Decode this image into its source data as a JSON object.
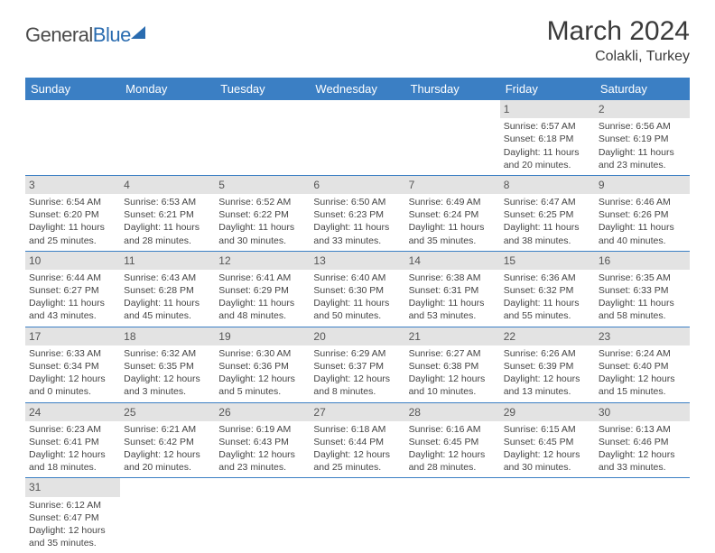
{
  "logo": {
    "text1": "General",
    "text2": "Blue"
  },
  "title": "March 2024",
  "location": "Colakli, Turkey",
  "colors": {
    "header_bg": "#3b7fc4",
    "header_fg": "#ffffff",
    "daynum_bg": "#e3e3e3",
    "text": "#444444",
    "accent": "#2a6cb0"
  },
  "weekdays": [
    "Sunday",
    "Monday",
    "Tuesday",
    "Wednesday",
    "Thursday",
    "Friday",
    "Saturday"
  ],
  "weeks": [
    [
      null,
      null,
      null,
      null,
      null,
      {
        "n": "1",
        "sr": "Sunrise: 6:57 AM",
        "ss": "Sunset: 6:18 PM",
        "d1": "Daylight: 11 hours",
        "d2": "and 20 minutes."
      },
      {
        "n": "2",
        "sr": "Sunrise: 6:56 AM",
        "ss": "Sunset: 6:19 PM",
        "d1": "Daylight: 11 hours",
        "d2": "and 23 minutes."
      }
    ],
    [
      {
        "n": "3",
        "sr": "Sunrise: 6:54 AM",
        "ss": "Sunset: 6:20 PM",
        "d1": "Daylight: 11 hours",
        "d2": "and 25 minutes."
      },
      {
        "n": "4",
        "sr": "Sunrise: 6:53 AM",
        "ss": "Sunset: 6:21 PM",
        "d1": "Daylight: 11 hours",
        "d2": "and 28 minutes."
      },
      {
        "n": "5",
        "sr": "Sunrise: 6:52 AM",
        "ss": "Sunset: 6:22 PM",
        "d1": "Daylight: 11 hours",
        "d2": "and 30 minutes."
      },
      {
        "n": "6",
        "sr": "Sunrise: 6:50 AM",
        "ss": "Sunset: 6:23 PM",
        "d1": "Daylight: 11 hours",
        "d2": "and 33 minutes."
      },
      {
        "n": "7",
        "sr": "Sunrise: 6:49 AM",
        "ss": "Sunset: 6:24 PM",
        "d1": "Daylight: 11 hours",
        "d2": "and 35 minutes."
      },
      {
        "n": "8",
        "sr": "Sunrise: 6:47 AM",
        "ss": "Sunset: 6:25 PM",
        "d1": "Daylight: 11 hours",
        "d2": "and 38 minutes."
      },
      {
        "n": "9",
        "sr": "Sunrise: 6:46 AM",
        "ss": "Sunset: 6:26 PM",
        "d1": "Daylight: 11 hours",
        "d2": "and 40 minutes."
      }
    ],
    [
      {
        "n": "10",
        "sr": "Sunrise: 6:44 AM",
        "ss": "Sunset: 6:27 PM",
        "d1": "Daylight: 11 hours",
        "d2": "and 43 minutes."
      },
      {
        "n": "11",
        "sr": "Sunrise: 6:43 AM",
        "ss": "Sunset: 6:28 PM",
        "d1": "Daylight: 11 hours",
        "d2": "and 45 minutes."
      },
      {
        "n": "12",
        "sr": "Sunrise: 6:41 AM",
        "ss": "Sunset: 6:29 PM",
        "d1": "Daylight: 11 hours",
        "d2": "and 48 minutes."
      },
      {
        "n": "13",
        "sr": "Sunrise: 6:40 AM",
        "ss": "Sunset: 6:30 PM",
        "d1": "Daylight: 11 hours",
        "d2": "and 50 minutes."
      },
      {
        "n": "14",
        "sr": "Sunrise: 6:38 AM",
        "ss": "Sunset: 6:31 PM",
        "d1": "Daylight: 11 hours",
        "d2": "and 53 minutes."
      },
      {
        "n": "15",
        "sr": "Sunrise: 6:36 AM",
        "ss": "Sunset: 6:32 PM",
        "d1": "Daylight: 11 hours",
        "d2": "and 55 minutes."
      },
      {
        "n": "16",
        "sr": "Sunrise: 6:35 AM",
        "ss": "Sunset: 6:33 PM",
        "d1": "Daylight: 11 hours",
        "d2": "and 58 minutes."
      }
    ],
    [
      {
        "n": "17",
        "sr": "Sunrise: 6:33 AM",
        "ss": "Sunset: 6:34 PM",
        "d1": "Daylight: 12 hours",
        "d2": "and 0 minutes."
      },
      {
        "n": "18",
        "sr": "Sunrise: 6:32 AM",
        "ss": "Sunset: 6:35 PM",
        "d1": "Daylight: 12 hours",
        "d2": "and 3 minutes."
      },
      {
        "n": "19",
        "sr": "Sunrise: 6:30 AM",
        "ss": "Sunset: 6:36 PM",
        "d1": "Daylight: 12 hours",
        "d2": "and 5 minutes."
      },
      {
        "n": "20",
        "sr": "Sunrise: 6:29 AM",
        "ss": "Sunset: 6:37 PM",
        "d1": "Daylight: 12 hours",
        "d2": "and 8 minutes."
      },
      {
        "n": "21",
        "sr": "Sunrise: 6:27 AM",
        "ss": "Sunset: 6:38 PM",
        "d1": "Daylight: 12 hours",
        "d2": "and 10 minutes."
      },
      {
        "n": "22",
        "sr": "Sunrise: 6:26 AM",
        "ss": "Sunset: 6:39 PM",
        "d1": "Daylight: 12 hours",
        "d2": "and 13 minutes."
      },
      {
        "n": "23",
        "sr": "Sunrise: 6:24 AM",
        "ss": "Sunset: 6:40 PM",
        "d1": "Daylight: 12 hours",
        "d2": "and 15 minutes."
      }
    ],
    [
      {
        "n": "24",
        "sr": "Sunrise: 6:23 AM",
        "ss": "Sunset: 6:41 PM",
        "d1": "Daylight: 12 hours",
        "d2": "and 18 minutes."
      },
      {
        "n": "25",
        "sr": "Sunrise: 6:21 AM",
        "ss": "Sunset: 6:42 PM",
        "d1": "Daylight: 12 hours",
        "d2": "and 20 minutes."
      },
      {
        "n": "26",
        "sr": "Sunrise: 6:19 AM",
        "ss": "Sunset: 6:43 PM",
        "d1": "Daylight: 12 hours",
        "d2": "and 23 minutes."
      },
      {
        "n": "27",
        "sr": "Sunrise: 6:18 AM",
        "ss": "Sunset: 6:44 PM",
        "d1": "Daylight: 12 hours",
        "d2": "and 25 minutes."
      },
      {
        "n": "28",
        "sr": "Sunrise: 6:16 AM",
        "ss": "Sunset: 6:45 PM",
        "d1": "Daylight: 12 hours",
        "d2": "and 28 minutes."
      },
      {
        "n": "29",
        "sr": "Sunrise: 6:15 AM",
        "ss": "Sunset: 6:45 PM",
        "d1": "Daylight: 12 hours",
        "d2": "and 30 minutes."
      },
      {
        "n": "30",
        "sr": "Sunrise: 6:13 AM",
        "ss": "Sunset: 6:46 PM",
        "d1": "Daylight: 12 hours",
        "d2": "and 33 minutes."
      }
    ],
    [
      {
        "n": "31",
        "sr": "Sunrise: 6:12 AM",
        "ss": "Sunset: 6:47 PM",
        "d1": "Daylight: 12 hours",
        "d2": "and 35 minutes."
      },
      null,
      null,
      null,
      null,
      null,
      null
    ]
  ]
}
